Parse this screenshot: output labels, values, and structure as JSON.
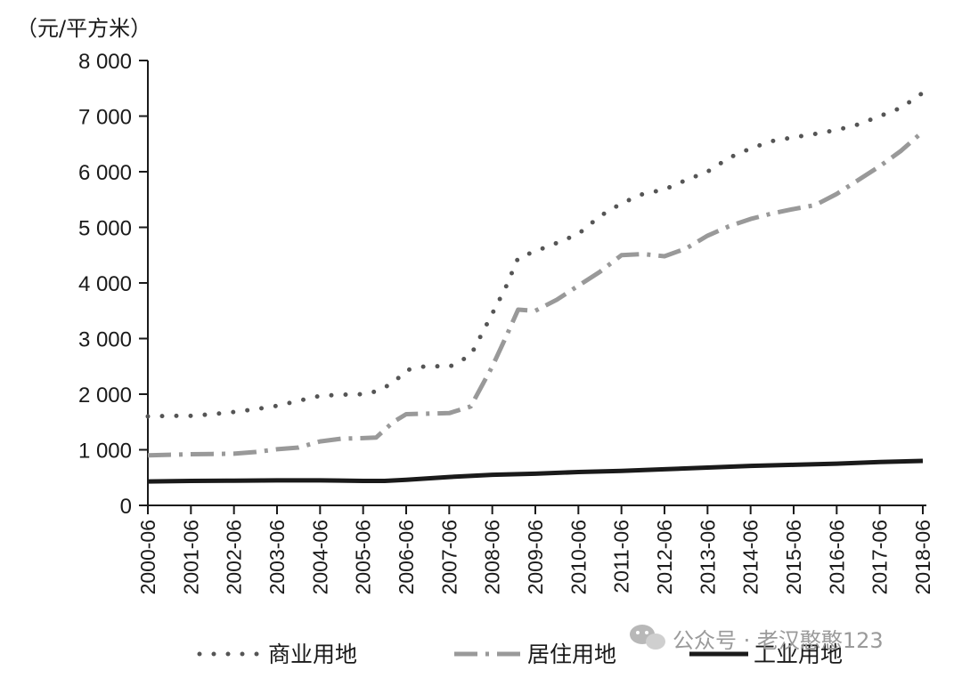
{
  "chart_data": {
    "type": "line",
    "unit_label": "（元/平方米）",
    "x": [
      "2000-06",
      "2001-06",
      "2002-06",
      "2003-06",
      "2004-06",
      "2005-06",
      "2006-06",
      "2007-06",
      "2008-06",
      "2009-06",
      "2010-06",
      "2011-06",
      "2012-06",
      "2013-06",
      "2014-06",
      "2015-06",
      "2016-06",
      "2017-06",
      "2018-06"
    ],
    "ylim": [
      0,
      8000
    ],
    "yticks": [
      0,
      1000,
      2000,
      3000,
      4000,
      5000,
      6000,
      7000,
      8000
    ],
    "ytick_labels": [
      "0",
      "1 000",
      "2 000",
      "3 000",
      "4 000",
      "5 000",
      "6 000",
      "7 000",
      "8 000"
    ],
    "series": [
      {
        "name": "商业用地",
        "style": "dotted",
        "color": "#555555",
        "points": [
          [
            0,
            1600
          ],
          [
            0.5,
            1610
          ],
          [
            1,
            1610
          ],
          [
            1.5,
            1640
          ],
          [
            2,
            1680
          ],
          [
            2.5,
            1730
          ],
          [
            3,
            1790
          ],
          [
            3.5,
            1880
          ],
          [
            4,
            1970
          ],
          [
            4.5,
            1990
          ],
          [
            5,
            2000
          ],
          [
            5.3,
            2050
          ],
          [
            5.7,
            2200
          ],
          [
            6,
            2430
          ],
          [
            6.5,
            2510
          ],
          [
            7,
            2490
          ],
          [
            7.5,
            2700
          ],
          [
            8,
            3450
          ],
          [
            8.3,
            3900
          ],
          [
            8.6,
            4450
          ],
          [
            9,
            4570
          ],
          [
            9.5,
            4720
          ],
          [
            10,
            4880
          ],
          [
            10.5,
            5200
          ],
          [
            11,
            5430
          ],
          [
            11.5,
            5600
          ],
          [
            12,
            5680
          ],
          [
            12.5,
            5850
          ],
          [
            13,
            6000
          ],
          [
            13.5,
            6250
          ],
          [
            14,
            6420
          ],
          [
            14.5,
            6550
          ],
          [
            15,
            6620
          ],
          [
            15.5,
            6680
          ],
          [
            16,
            6750
          ],
          [
            16.5,
            6850
          ],
          [
            17,
            7000
          ],
          [
            17.5,
            7150
          ],
          [
            18,
            7420
          ]
        ]
      },
      {
        "name": "居住用地",
        "style": "dashdot",
        "color": "#999999",
        "points": [
          [
            0,
            900
          ],
          [
            0.5,
            910
          ],
          [
            1,
            920
          ],
          [
            1.5,
            925
          ],
          [
            2,
            930
          ],
          [
            2.5,
            960
          ],
          [
            3,
            1010
          ],
          [
            3.5,
            1040
          ],
          [
            4,
            1150
          ],
          [
            4.5,
            1200
          ],
          [
            5,
            1210
          ],
          [
            5.3,
            1220
          ],
          [
            5.7,
            1500
          ],
          [
            6,
            1640
          ],
          [
            6.5,
            1650
          ],
          [
            7,
            1660
          ],
          [
            7.5,
            1780
          ],
          [
            8,
            2500
          ],
          [
            8.3,
            3000
          ],
          [
            8.6,
            3520
          ],
          [
            9,
            3500
          ],
          [
            9.5,
            3700
          ],
          [
            10,
            3950
          ],
          [
            10.5,
            4200
          ],
          [
            11,
            4500
          ],
          [
            11.5,
            4520
          ],
          [
            12,
            4480
          ],
          [
            12.5,
            4620
          ],
          [
            13,
            4850
          ],
          [
            13.5,
            5020
          ],
          [
            14,
            5150
          ],
          [
            14.5,
            5250
          ],
          [
            15,
            5330
          ],
          [
            15.5,
            5400
          ],
          [
            16,
            5600
          ],
          [
            16.5,
            5850
          ],
          [
            17,
            6100
          ],
          [
            17.5,
            6380
          ],
          [
            18,
            6720
          ]
        ]
      },
      {
        "name": "工业用地",
        "style": "solid",
        "color": "#1a1a1a",
        "points": [
          [
            0,
            430
          ],
          [
            1,
            440
          ],
          [
            2,
            445
          ],
          [
            3,
            450
          ],
          [
            4,
            450
          ],
          [
            5,
            440
          ],
          [
            5.5,
            440
          ],
          [
            6,
            460
          ],
          [
            7,
            510
          ],
          [
            8,
            550
          ],
          [
            9,
            570
          ],
          [
            10,
            600
          ],
          [
            11,
            620
          ],
          [
            12,
            650
          ],
          [
            13,
            680
          ],
          [
            14,
            710
          ],
          [
            15,
            730
          ],
          [
            16,
            750
          ],
          [
            17,
            780
          ],
          [
            18,
            800
          ]
        ]
      }
    ],
    "legend": {
      "placement": "bottom",
      "items": [
        {
          "label": "商业用地",
          "style": "dotted"
        },
        {
          "label": "居住用地",
          "style": "dashdot"
        },
        {
          "label": "工业用地",
          "style": "solid"
        }
      ]
    },
    "watermark": {
      "text": "公众号 · 老汉憨憨123",
      "icon": "wechat-icon"
    },
    "grid": false
  }
}
